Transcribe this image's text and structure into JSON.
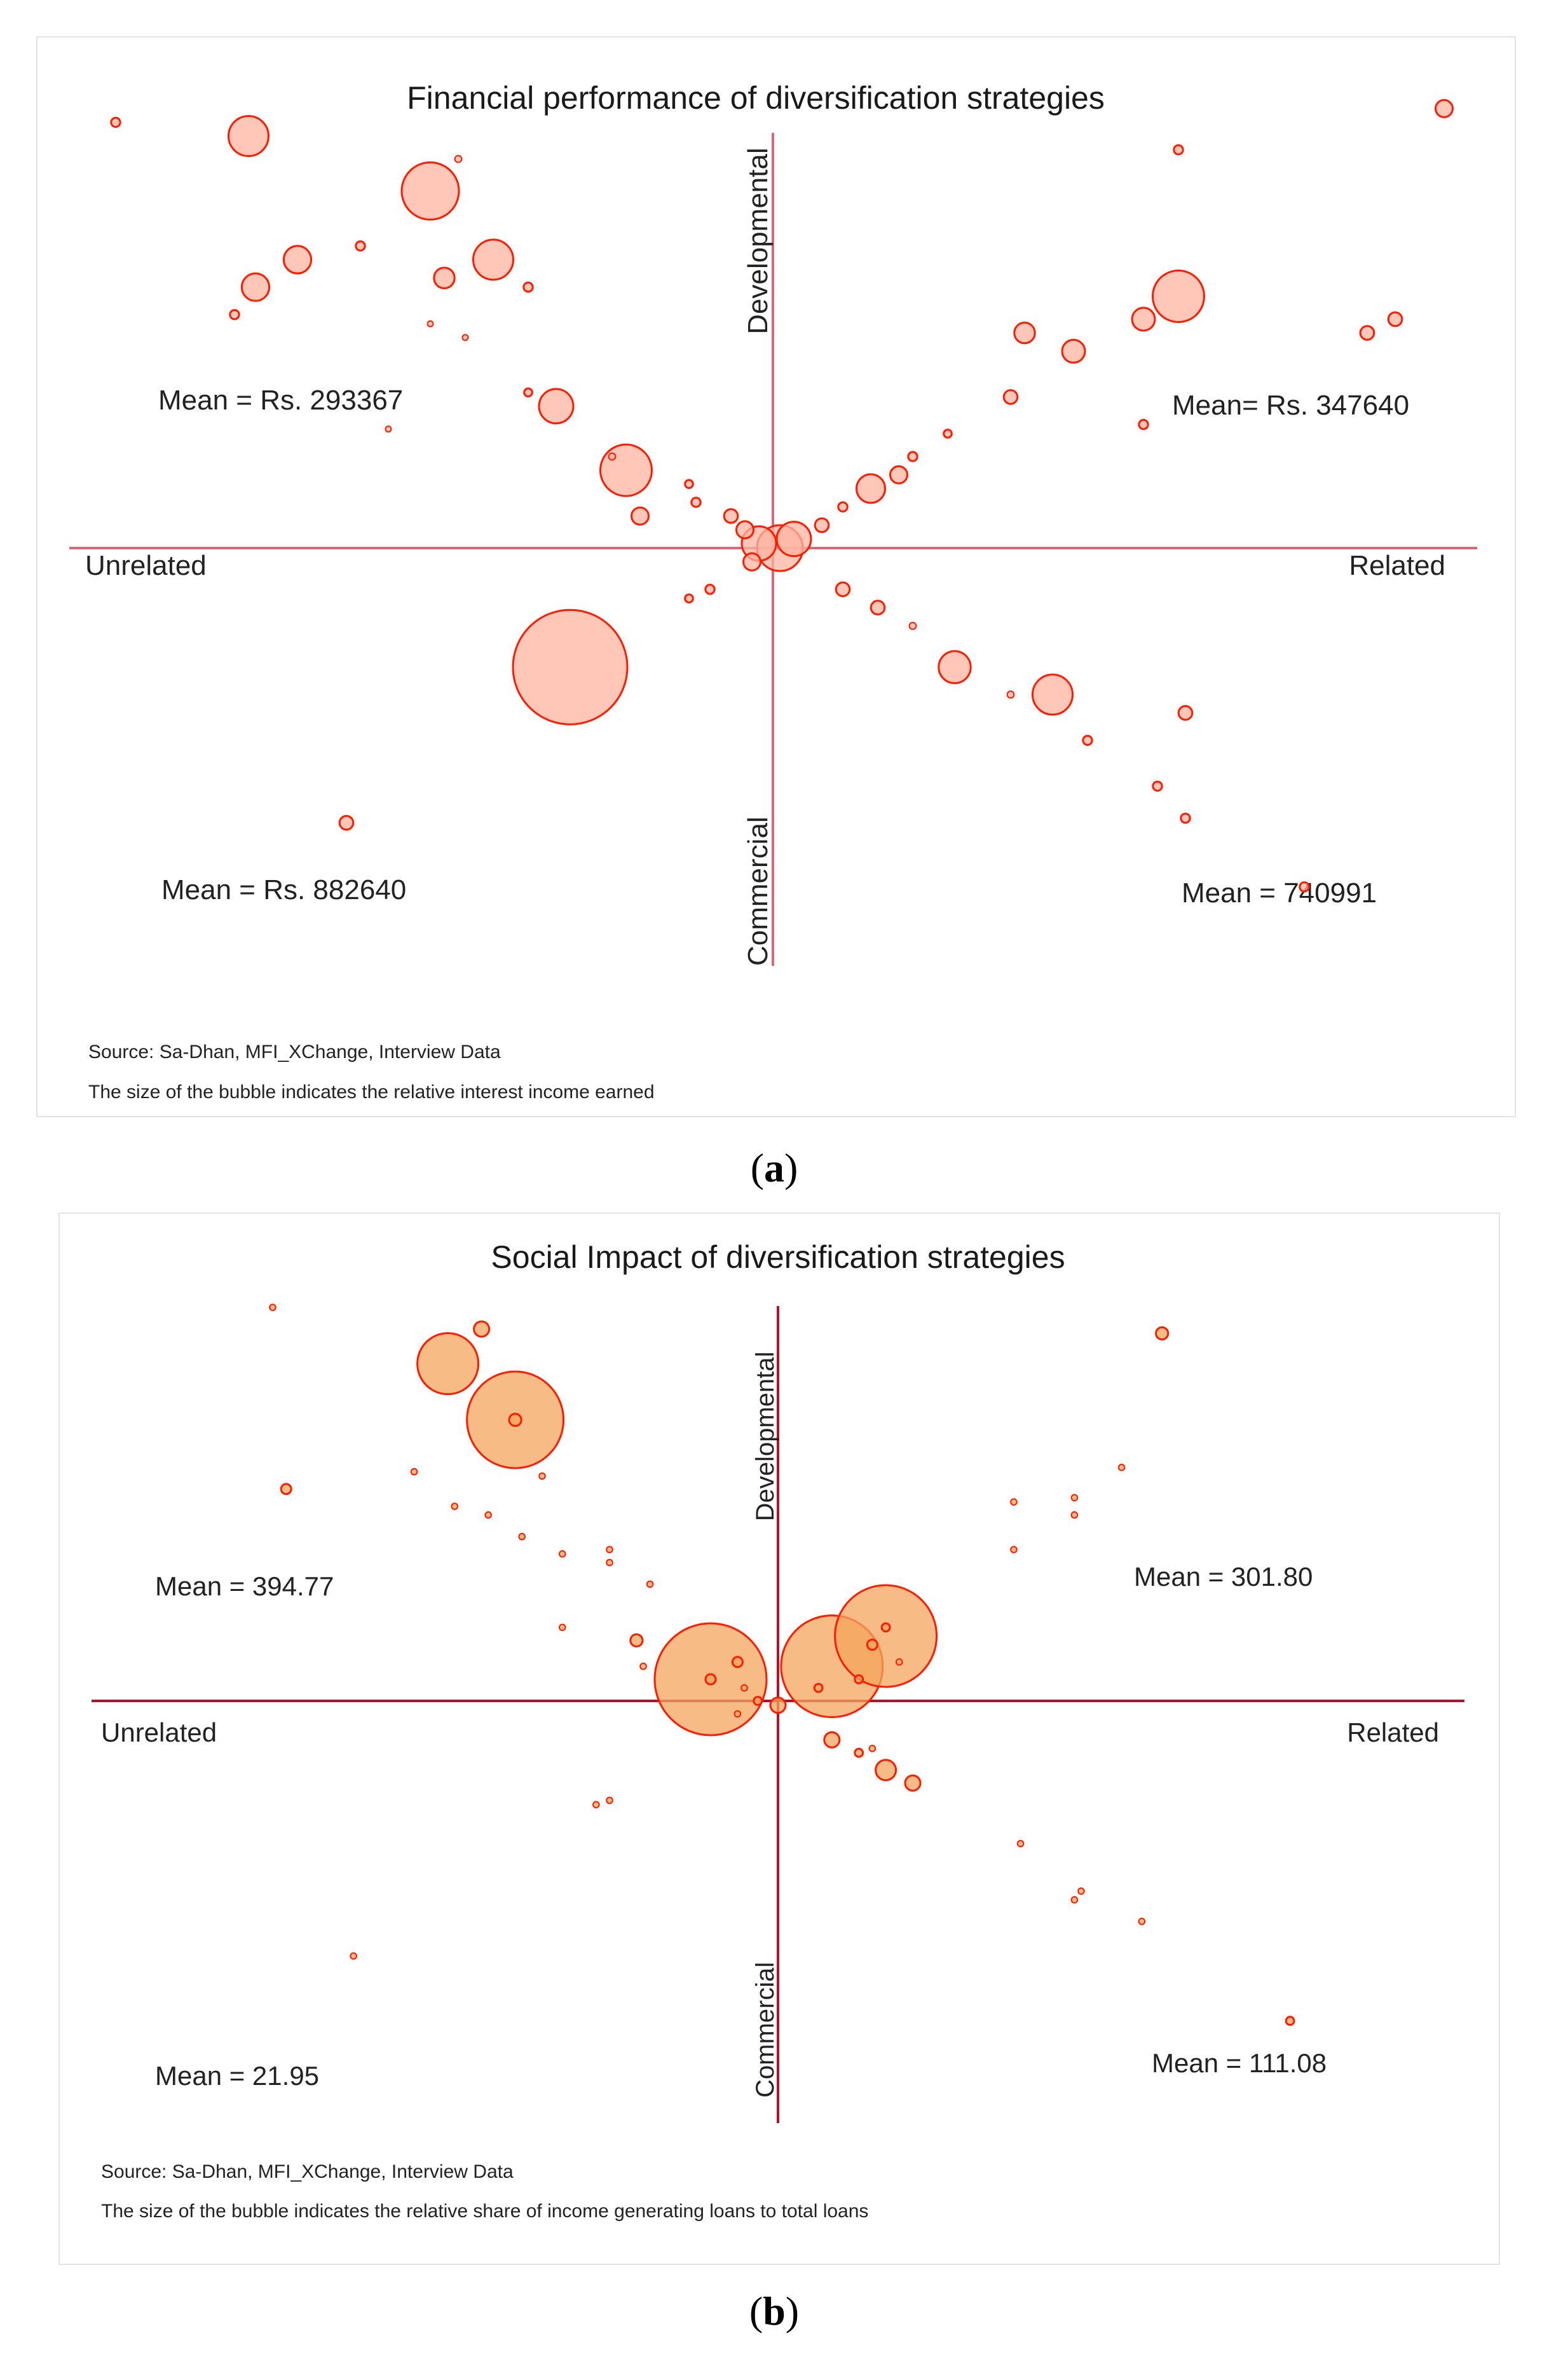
{
  "figures": [
    {
      "panel_label": "a",
      "notes": [
        "Source: Sa-Dhan, MFI_XChange, Interview Data",
        "The size of the bubble indicates the relative interest income earned"
      ]
    },
    {
      "panel_label": "b",
      "notes": [
        "Source: Sa-Dhan, MFI_XChange, Interview Data",
        "The size of the bubble indicates the relative share of income generating loans to total loans"
      ]
    }
  ],
  "colors": {
    "axis_a": "#d46a7c",
    "axis_b": "#b3102a",
    "bubble_stroke": "#ff1a00",
    "bubble_fill_a": "#ffb4a0",
    "bubble_fill_b": "#f4a55c"
  },
  "chart_data": [
    {
      "type": "scatter",
      "title": "Financial performance of diversification strategies",
      "xlabel_left": "Unrelated",
      "xlabel_right": "Related",
      "ylabel_top": "Developmental",
      "ylabel_bottom": "Commercial",
      "xlim": [
        -10,
        10
      ],
      "ylim": [
        -10,
        10
      ],
      "size_meaning": "relative interest income earned",
      "quadrant_means": [
        {
          "quadrant": "unrelated-developmental",
          "label": "Mean = Rs. 293367"
        },
        {
          "quadrant": "related-developmental",
          "label": "Mean= Rs. 347640"
        },
        {
          "quadrant": "unrelated-commercial",
          "label": "Mean = Rs. 882640"
        },
        {
          "quadrant": "related-commercial",
          "label": "Mean = 740991"
        }
      ],
      "points": [
        {
          "x": -9.4,
          "y": 9.3,
          "size": 0.8
        },
        {
          "x": -7.5,
          "y": 9.0,
          "size": 3.5
        },
        {
          "x": -4.9,
          "y": 7.8,
          "size": 5.0
        },
        {
          "x": -4.5,
          "y": 8.5,
          "size": 0.6
        },
        {
          "x": -5.9,
          "y": 6.6,
          "size": 0.8
        },
        {
          "x": -6.8,
          "y": 6.3,
          "size": 2.4
        },
        {
          "x": -4.0,
          "y": 6.3,
          "size": 3.5
        },
        {
          "x": -4.7,
          "y": 5.9,
          "size": 1.8
        },
        {
          "x": -7.4,
          "y": 5.7,
          "size": 2.4
        },
        {
          "x": -3.5,
          "y": 5.7,
          "size": 0.8
        },
        {
          "x": -7.7,
          "y": 5.1,
          "size": 0.8
        },
        {
          "x": -4.9,
          "y": 4.9,
          "size": 0.5
        },
        {
          "x": -4.4,
          "y": 4.6,
          "size": 0.5
        },
        {
          "x": -3.5,
          "y": 3.4,
          "size": 0.7
        },
        {
          "x": -3.1,
          "y": 3.1,
          "size": 3.0
        },
        {
          "x": -5.5,
          "y": 2.6,
          "size": 0.5
        },
        {
          "x": -2.3,
          "y": 2.0,
          "size": 0.6
        },
        {
          "x": -2.1,
          "y": 1.7,
          "size": 4.5
        },
        {
          "x": -1.9,
          "y": 0.7,
          "size": 1.5
        },
        {
          "x": -1.2,
          "y": 1.4,
          "size": 0.7
        },
        {
          "x": -1.1,
          "y": 1.0,
          "size": 0.8
        },
        {
          "x": -0.6,
          "y": 0.7,
          "size": 1.2
        },
        {
          "x": -0.4,
          "y": 0.4,
          "size": 1.5
        },
        {
          "x": -0.2,
          "y": 0.1,
          "size": 3.0
        },
        {
          "x": 0.1,
          "y": 0.0,
          "size": 4.0
        },
        {
          "x": 0.3,
          "y": 0.2,
          "size": 3.0
        },
        {
          "x": -0.3,
          "y": -0.3,
          "size": 1.5
        },
        {
          "x": -0.9,
          "y": -0.9,
          "size": 0.8
        },
        {
          "x": -1.2,
          "y": -1.1,
          "size": 0.7
        },
        {
          "x": -2.9,
          "y": -2.6,
          "size": 10.0
        },
        {
          "x": -6.1,
          "y": -6.0,
          "size": 1.2
        },
        {
          "x": 0.7,
          "y": 0.5,
          "size": 1.2
        },
        {
          "x": 1.0,
          "y": 0.9,
          "size": 0.8
        },
        {
          "x": 1.4,
          "y": 1.3,
          "size": 2.5
        },
        {
          "x": 1.8,
          "y": 1.6,
          "size": 1.5
        },
        {
          "x": 2.0,
          "y": 2.0,
          "size": 0.8
        },
        {
          "x": 2.5,
          "y": 2.5,
          "size": 0.7
        },
        {
          "x": 3.4,
          "y": 3.3,
          "size": 1.2
        },
        {
          "x": 3.6,
          "y": 4.7,
          "size": 1.8
        },
        {
          "x": 4.3,
          "y": 4.3,
          "size": 2.0
        },
        {
          "x": 5.3,
          "y": 5.0,
          "size": 2.0
        },
        {
          "x": 5.8,
          "y": 5.5,
          "size": 4.5
        },
        {
          "x": 5.8,
          "y": 8.7,
          "size": 0.8
        },
        {
          "x": 8.5,
          "y": 4.7,
          "size": 1.2
        },
        {
          "x": 8.9,
          "y": 5.0,
          "size": 1.2
        },
        {
          "x": 9.6,
          "y": 9.6,
          "size": 1.5
        },
        {
          "x": 5.3,
          "y": 2.7,
          "size": 0.8
        },
        {
          "x": 1.0,
          "y": -0.9,
          "size": 1.2
        },
        {
          "x": 1.5,
          "y": -1.3,
          "size": 1.2
        },
        {
          "x": 2.6,
          "y": -2.6,
          "size": 2.8
        },
        {
          "x": 3.4,
          "y": -3.2,
          "size": 0.6
        },
        {
          "x": 4.0,
          "y": -3.2,
          "size": 3.5
        },
        {
          "x": 4.5,
          "y": -4.2,
          "size": 0.8
        },
        {
          "x": 5.9,
          "y": -3.6,
          "size": 1.2
        },
        {
          "x": 5.5,
          "y": -5.2,
          "size": 0.8
        },
        {
          "x": 5.9,
          "y": -5.9,
          "size": 0.8
        },
        {
          "x": 7.6,
          "y": -7.4,
          "size": 0.8
        },
        {
          "x": 2.0,
          "y": -1.7,
          "size": 0.6
        }
      ]
    },
    {
      "type": "scatter",
      "title": "Social Impact of diversification strategies",
      "xlabel_left": "Unrelated",
      "xlabel_right": "Related",
      "ylabel_top": "Developmental",
      "ylabel_bottom": "Commercial",
      "xlim": [
        -10,
        10
      ],
      "ylim": [
        -10,
        10
      ],
      "size_meaning": "relative share of income generating loans to total loans",
      "quadrant_means": [
        {
          "quadrant": "unrelated-developmental",
          "label": "Mean = 394.77"
        },
        {
          "quadrant": "related-developmental",
          "label": "Mean = 301.80"
        },
        {
          "quadrant": "unrelated-commercial",
          "label": "Mean = 21.95"
        },
        {
          "quadrant": "related-commercial",
          "label": "Mean = 111.08"
        }
      ],
      "points": [
        {
          "x": -7.5,
          "y": 9.1,
          "size": 0.6
        },
        {
          "x": -4.4,
          "y": 8.6,
          "size": 1.5
        },
        {
          "x": -4.9,
          "y": 7.8,
          "size": 6.0
        },
        {
          "x": -3.9,
          "y": 6.5,
          "size": 9.5
        },
        {
          "x": -3.9,
          "y": 6.5,
          "size": 1.2
        },
        {
          "x": -3.5,
          "y": 5.2,
          "size": 0.6
        },
        {
          "x": -5.4,
          "y": 5.3,
          "size": 0.6
        },
        {
          "x": -7.3,
          "y": 4.9,
          "size": 1.0
        },
        {
          "x": -4.8,
          "y": 4.5,
          "size": 0.6
        },
        {
          "x": -4.3,
          "y": 4.3,
          "size": 0.6
        },
        {
          "x": -3.8,
          "y": 3.8,
          "size": 0.6
        },
        {
          "x": -2.5,
          "y": 3.5,
          "size": 0.6
        },
        {
          "x": -3.2,
          "y": 3.4,
          "size": 0.6
        },
        {
          "x": -2.5,
          "y": 3.2,
          "size": 0.6
        },
        {
          "x": -1.9,
          "y": 2.7,
          "size": 0.6
        },
        {
          "x": -3.2,
          "y": 1.7,
          "size": 0.6
        },
        {
          "x": -2.1,
          "y": 1.4,
          "size": 1.2
        },
        {
          "x": -2.0,
          "y": 0.8,
          "size": 0.6
        },
        {
          "x": -1.0,
          "y": 0.5,
          "size": 11.0
        },
        {
          "x": -1.0,
          "y": 0.5,
          "size": 1.0
        },
        {
          "x": -0.6,
          "y": 0.9,
          "size": 1.0
        },
        {
          "x": -0.5,
          "y": 0.3,
          "size": 0.6
        },
        {
          "x": -0.6,
          "y": -0.3,
          "size": 0.6
        },
        {
          "x": -0.3,
          "y": 0.0,
          "size": 0.8
        },
        {
          "x": 0.0,
          "y": -0.1,
          "size": 1.5
        },
        {
          "x": 0.6,
          "y": 0.3,
          "size": 0.8
        },
        {
          "x": 0.8,
          "y": 0.8,
          "size": 10.0
        },
        {
          "x": 1.6,
          "y": 1.5,
          "size": 10.0
        },
        {
          "x": 1.4,
          "y": 1.3,
          "size": 1.0
        },
        {
          "x": 1.2,
          "y": 0.5,
          "size": 0.8
        },
        {
          "x": 1.6,
          "y": 1.7,
          "size": 0.8
        },
        {
          "x": 1.8,
          "y": 0.9,
          "size": 0.6
        },
        {
          "x": 3.5,
          "y": 4.6,
          "size": 0.6
        },
        {
          "x": 4.4,
          "y": 4.7,
          "size": 0.6
        },
        {
          "x": 4.4,
          "y": 4.3,
          "size": 0.6
        },
        {
          "x": 3.5,
          "y": 3.5,
          "size": 0.6
        },
        {
          "x": 5.7,
          "y": 8.5,
          "size": 1.2
        },
        {
          "x": 5.1,
          "y": 5.4,
          "size": 0.6
        },
        {
          "x": 0.8,
          "y": -0.9,
          "size": 1.5
        },
        {
          "x": 1.2,
          "y": -1.2,
          "size": 0.8
        },
        {
          "x": 1.4,
          "y": -1.1,
          "size": 0.6
        },
        {
          "x": 1.6,
          "y": -1.6,
          "size": 2.0
        },
        {
          "x": 2.0,
          "y": -1.9,
          "size": 1.5
        },
        {
          "x": 3.6,
          "y": -3.3,
          "size": 0.6
        },
        {
          "x": 4.4,
          "y": -4.6,
          "size": 0.6
        },
        {
          "x": 4.5,
          "y": -4.4,
          "size": 0.6
        },
        {
          "x": 5.4,
          "y": -5.1,
          "size": 0.6
        },
        {
          "x": 7.6,
          "y": -7.4,
          "size": 0.8
        },
        {
          "x": -2.5,
          "y": -2.3,
          "size": 0.6
        },
        {
          "x": -2.7,
          "y": -2.4,
          "size": 0.6
        },
        {
          "x": -6.3,
          "y": -5.9,
          "size": 0.6
        }
      ]
    }
  ]
}
